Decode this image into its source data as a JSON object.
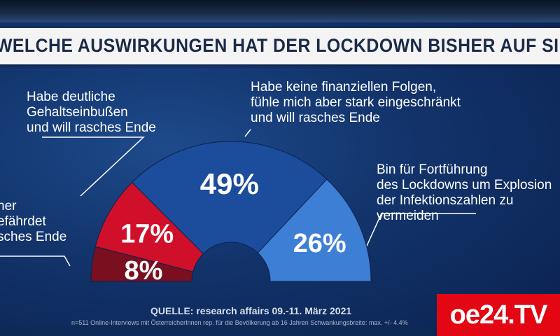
{
  "title": "WELCHE AUSWIRKUNGEN HAT DER LOCKDOWN BISHER AUF SIE?",
  "labels": {
    "salary_loss": "Habe deutliche\nGehaltseinbußen\nund will rasches Ende",
    "no_financial": "Habe keine finanziellen Folgen,\nfühle mich aber stark eingeschränkt\nund will rasches Ende",
    "continue": "Bin für Fortführung\ndes Lockdowns um Explosion\nder Infektionszahlen zu vermeiden",
    "endangered": "ner\nefährdet\nsches Ende"
  },
  "source": "QUELLE: research affairs 09.-11. März 2021",
  "footnote": "n=511 Online-Interviews mit ÖsterreicherInnen rep. für die Bevölkerung ab 16 Jahren Schwankungsbreite: max. +/- 4.4%",
  "logo": "oe24.TV",
  "colors": {
    "dark_red": "#7a0f1f",
    "red": "#d0102a",
    "dark_blue": "#1c4d9c",
    "light_blue": "#3e7fd6"
  },
  "chart_data": {
    "type": "pie",
    "subtype": "semicircle",
    "categories": [
      "Existenz gefährdet, rasches Ende",
      "Habe deutliche Gehaltseinbußen und will rasches Ende",
      "Habe keine finanziellen Folgen, fühle mich aber stark eingeschränkt und will rasches Ende",
      "Bin für Fortführung des Lockdowns um Explosion der Infektionszahlen zu vermeiden"
    ],
    "values": [
      8,
      17,
      49,
      26
    ],
    "value_labels": [
      "8%",
      "17%",
      "49%",
      "26%"
    ],
    "title": "WELCHE AUSWIRKUNGEN HAT DER LOCKDOWN BISHER AUF SIE?"
  }
}
